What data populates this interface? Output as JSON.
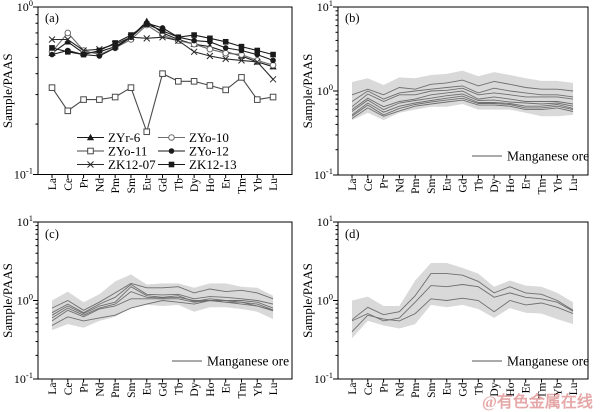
{
  "figure": {
    "background": "#ffffff",
    "axis_color": "#000000",
    "text_color": "#000000"
  },
  "watermark": {
    "text": "@有色金属在线",
    "color": "#d97b7b"
  },
  "chart_data": [
    {
      "id": "a",
      "type": "line",
      "panel_label": "(a)",
      "ylabel": "Sample/PAAS",
      "ylim": [
        0.1,
        1
      ],
      "y_ticks": [
        "10^0",
        "10^-1"
      ],
      "grid": false,
      "legend_position": "bottom-center",
      "categories": [
        "La",
        "Ce",
        "Pr",
        "Nd",
        "Pm",
        "Sm",
        "Eu",
        "Gd",
        "Tb",
        "Dy",
        "Ho",
        "Er",
        "Tm",
        "Yb",
        "Lu"
      ],
      "series": [
        {
          "name": "ZYr-6",
          "marker": "triangle-filled",
          "color": "#1a1a1a",
          "values": [
            0.53,
            0.62,
            0.53,
            0.54,
            0.58,
            0.66,
            0.82,
            0.7,
            0.64,
            0.6,
            0.58,
            0.54,
            0.51,
            0.47,
            0.44
          ]
        },
        {
          "name": "ZYo-10",
          "marker": "circle-open",
          "color": "#6e6e6e",
          "values": [
            0.54,
            0.7,
            0.55,
            0.52,
            0.57,
            0.64,
            0.78,
            0.68,
            0.63,
            0.6,
            0.56,
            0.53,
            0.52,
            0.48,
            0.45
          ]
        },
        {
          "name": "ZYo-11",
          "marker": "square-open",
          "color": "#4a4a4a",
          "values": [
            0.33,
            0.24,
            0.28,
            0.28,
            0.29,
            0.33,
            0.18,
            0.4,
            0.36,
            0.36,
            0.34,
            0.32,
            0.38,
            0.28,
            0.29
          ]
        },
        {
          "name": "ZYo-12",
          "marker": "circle-filled",
          "color": "#1a1a1a",
          "values": [
            0.52,
            0.55,
            0.52,
            0.51,
            0.57,
            0.66,
            0.8,
            0.75,
            0.66,
            0.63,
            0.62,
            0.57,
            0.55,
            0.52,
            0.48
          ]
        },
        {
          "name": "ZK12-07",
          "marker": "x-cross",
          "color": "#2a2a2a",
          "values": [
            0.64,
            0.64,
            0.55,
            0.56,
            0.6,
            0.66,
            0.65,
            0.66,
            0.63,
            0.54,
            0.51,
            0.49,
            0.48,
            0.47,
            0.37
          ]
        },
        {
          "name": "ZK12-13",
          "marker": "square-filled",
          "color": "#1a1a1a",
          "values": [
            0.57,
            0.54,
            0.52,
            0.55,
            0.61,
            0.68,
            0.79,
            0.72,
            0.66,
            0.68,
            0.65,
            0.62,
            0.58,
            0.55,
            0.52
          ]
        }
      ]
    },
    {
      "id": "b",
      "type": "line",
      "panel_label": "(b)",
      "ylabel": "Sample/PAAS",
      "ylim": [
        0.1,
        10
      ],
      "y_ticks": [
        "10^1",
        "10^0",
        "10^-1"
      ],
      "grid": false,
      "legend": {
        "label": "Manganese ore",
        "position": "bottom-right"
      },
      "categories": [
        "La",
        "Ce",
        "Pr",
        "Nd",
        "Pm",
        "Sm",
        "Eu",
        "Gd",
        "Tb",
        "Dy",
        "Ho",
        "Er",
        "Tm",
        "Yb",
        "Lu"
      ],
      "band": {
        "color": "#d9d9d9",
        "upper": [
          1.28,
          1.42,
          1.18,
          1.45,
          1.42,
          1.55,
          1.6,
          1.75,
          1.5,
          1.68,
          1.55,
          1.42,
          1.32,
          1.32,
          1.25
        ],
        "lower": [
          0.45,
          0.55,
          0.45,
          0.55,
          0.6,
          0.65,
          0.65,
          0.7,
          0.6,
          0.6,
          0.6,
          0.55,
          0.5,
          0.5,
          0.52
        ]
      },
      "series": [
        {
          "marker": "none",
          "color": "#6f6f6f",
          "values": [
            0.9,
            1.05,
            0.9,
            1.1,
            1.05,
            1.2,
            1.25,
            1.35,
            1.15,
            1.3,
            1.2,
            1.1,
            1.05,
            1.05,
            1.0
          ]
        },
        {
          "marker": "none",
          "color": "#6f6f6f",
          "values": [
            0.75,
            1.0,
            0.8,
            0.95,
            1.0,
            1.05,
            1.1,
            1.15,
            0.95,
            1.08,
            1.0,
            0.95,
            0.9,
            0.9,
            0.85
          ]
        },
        {
          "marker": "none",
          "color": "#6f6f6f",
          "values": [
            0.65,
            0.92,
            0.75,
            0.9,
            0.9,
            1.0,
            1.02,
            1.08,
            0.9,
            0.95,
            0.9,
            0.85,
            0.85,
            0.85,
            0.8
          ]
        },
        {
          "marker": "none",
          "color": "#6f6f6f",
          "values": [
            0.6,
            0.82,
            0.65,
            0.75,
            0.8,
            0.9,
            0.95,
            1.0,
            0.8,
            0.85,
            0.8,
            0.75,
            0.75,
            0.75,
            0.7
          ]
        },
        {
          "marker": "none",
          "color": "#6f6f6f",
          "values": [
            0.57,
            0.78,
            0.6,
            0.72,
            0.77,
            0.82,
            0.88,
            0.92,
            0.77,
            0.78,
            0.74,
            0.72,
            0.7,
            0.72,
            0.66
          ]
        },
        {
          "marker": "none",
          "color": "#6f6f6f",
          "values": [
            0.52,
            0.72,
            0.56,
            0.66,
            0.72,
            0.77,
            0.82,
            0.87,
            0.73,
            0.73,
            0.71,
            0.66,
            0.66,
            0.69,
            0.62
          ]
        },
        {
          "marker": "none",
          "color": "#6f6f6f",
          "values": [
            0.5,
            0.68,
            0.52,
            0.62,
            0.69,
            0.74,
            0.78,
            0.82,
            0.71,
            0.71,
            0.69,
            0.63,
            0.63,
            0.66,
            0.6
          ]
        },
        {
          "marker": "none",
          "color": "#6f6f6f",
          "values": [
            0.47,
            0.63,
            0.5,
            0.58,
            0.66,
            0.7,
            0.74,
            0.78,
            0.68,
            0.68,
            0.66,
            0.6,
            0.6,
            0.63,
            0.57
          ]
        }
      ]
    },
    {
      "id": "c",
      "type": "line",
      "panel_label": "(c)",
      "ylabel": "Sample/PAAS",
      "ylim": [
        0.1,
        10
      ],
      "y_ticks": [
        "10^1",
        "10^0",
        "10^-1"
      ],
      "grid": false,
      "legend": {
        "label": "Manganese ore",
        "position": "bottom-right"
      },
      "categories": [
        "La",
        "Ce",
        "Pr",
        "Nd",
        "Pm",
        "Sm",
        "Eu",
        "Gd",
        "Tb",
        "Dy",
        "Ho",
        "Er",
        "Tm",
        "Yb",
        "Lu"
      ],
      "band": {
        "color": "#d9d9d9",
        "upper": [
          1.0,
          1.3,
          0.95,
          1.2,
          1.75,
          2.15,
          1.6,
          1.65,
          1.65,
          1.45,
          1.65,
          1.65,
          1.5,
          1.45,
          1.15
        ],
        "lower": [
          0.42,
          0.5,
          0.45,
          0.55,
          0.62,
          0.8,
          0.88,
          0.85,
          0.88,
          0.72,
          0.82,
          0.82,
          0.78,
          0.72,
          0.58
        ]
      },
      "series": [
        {
          "marker": "none",
          "color": "#6f6f6f",
          "values": [
            0.8,
            1.0,
            0.75,
            0.95,
            1.25,
            1.65,
            1.45,
            1.45,
            1.5,
            1.25,
            1.4,
            1.3,
            1.35,
            1.25,
            1.05
          ]
        },
        {
          "marker": "none",
          "color": "#6f6f6f",
          "values": [
            0.7,
            0.9,
            0.7,
            0.9,
            1.1,
            1.6,
            1.2,
            1.18,
            1.2,
            1.05,
            1.12,
            1.1,
            1.05,
            1.0,
            0.9
          ]
        },
        {
          "marker": "none",
          "color": "#6f6f6f",
          "values": [
            0.65,
            0.85,
            0.68,
            0.85,
            0.95,
            1.5,
            1.15,
            1.1,
            1.15,
            0.97,
            1.05,
            1.0,
            1.0,
            0.95,
            0.8
          ]
        },
        {
          "marker": "none",
          "color": "#6f6f6f",
          "values": [
            0.6,
            0.8,
            0.65,
            0.8,
            0.9,
            1.3,
            1.1,
            1.08,
            1.1,
            1.0,
            1.0,
            1.0,
            0.95,
            0.9,
            0.76
          ]
        },
        {
          "marker": "none",
          "color": "#6f6f6f",
          "values": [
            0.55,
            0.75,
            0.62,
            0.78,
            0.85,
            1.05,
            1.05,
            1.05,
            1.05,
            0.95,
            1.0,
            0.95,
            0.95,
            0.85,
            0.75
          ]
        },
        {
          "marker": "none",
          "color": "#6f6f6f",
          "values": [
            0.48,
            0.62,
            0.55,
            0.6,
            0.65,
            0.8,
            0.9,
            1.0,
            0.95,
            0.9,
            1.0,
            0.95,
            0.9,
            0.85,
            0.74
          ]
        }
      ]
    },
    {
      "id": "d",
      "type": "line",
      "panel_label": "(d)",
      "ylabel": "Sample/PAAS",
      "ylim": [
        0.1,
        10
      ],
      "y_ticks": [
        "10^1",
        "10^0",
        "10^-1"
      ],
      "grid": false,
      "legend": {
        "label": "Manganese ore",
        "position": "bottom-right"
      },
      "categories": [
        "La",
        "Ce",
        "Pr",
        "Nd",
        "Pm",
        "Sm",
        "Eu",
        "Gd",
        "Tb",
        "Dy",
        "Ho",
        "Er",
        "Tm",
        "Yb",
        "Lu"
      ],
      "band": {
        "color": "#d9d9d9",
        "upper": [
          1.0,
          1.12,
          0.85,
          0.85,
          1.8,
          3.0,
          3.0,
          2.6,
          2.2,
          1.5,
          1.8,
          1.55,
          1.5,
          1.25,
          0.95
        ],
        "lower": [
          0.33,
          0.55,
          0.48,
          0.44,
          0.5,
          0.88,
          0.82,
          0.88,
          0.78,
          0.6,
          0.8,
          0.7,
          0.68,
          0.58,
          0.5
        ]
      },
      "series": [
        {
          "marker": "none",
          "color": "#6f6f6f",
          "values": [
            0.57,
            0.82,
            0.66,
            0.72,
            1.15,
            2.2,
            2.2,
            2.1,
            1.75,
            1.25,
            1.5,
            1.25,
            1.2,
            1.0,
            0.75
          ]
        },
        {
          "marker": "none",
          "color": "#6f6f6f",
          "values": [
            0.55,
            0.68,
            0.55,
            0.6,
            0.95,
            1.55,
            1.5,
            1.6,
            1.5,
            1.1,
            1.25,
            1.1,
            1.05,
            0.95,
            0.73
          ]
        },
        {
          "marker": "none",
          "color": "#6f6f6f",
          "values": [
            0.4,
            0.65,
            0.58,
            0.55,
            0.68,
            1.05,
            1.0,
            1.07,
            1.0,
            0.72,
            1.0,
            0.88,
            0.93,
            0.82,
            0.68
          ]
        }
      ]
    }
  ]
}
